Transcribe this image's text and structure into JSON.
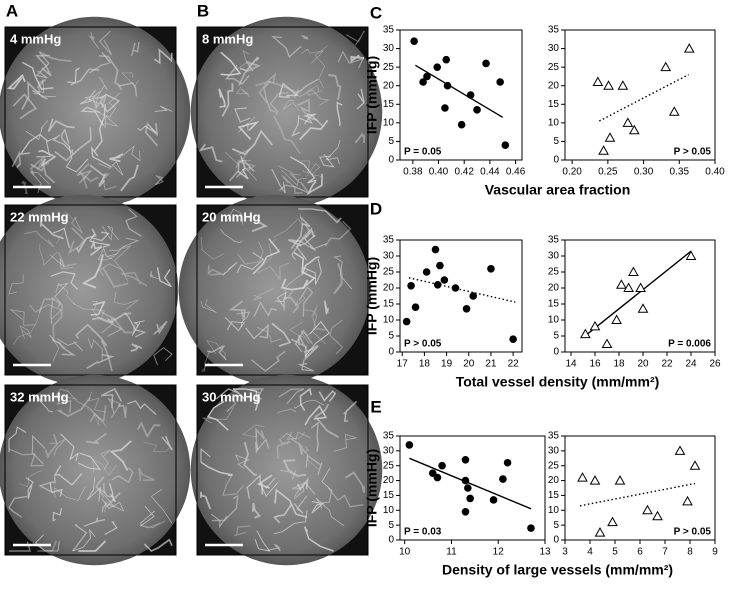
{
  "panel_labels": [
    "A",
    "B",
    "C",
    "D",
    "E"
  ],
  "images": [
    {
      "label": "4 mmHg"
    },
    {
      "label": "22 mmHg"
    },
    {
      "label": "32 mmHg"
    },
    {
      "label": "8 mmHg"
    },
    {
      "label": "20 mmHg"
    },
    {
      "label": "30 mmHg"
    }
  ],
  "chart_data": [
    {
      "type": "scatter",
      "marker": "circle",
      "color": "#000000",
      "ylabel": "IFP (mmHg)",
      "xlabel": "Vascular area fraction",
      "x": [
        0.381,
        0.388,
        0.391,
        0.399,
        0.406,
        0.407,
        0.405,
        0.418,
        0.425,
        0.43,
        0.437,
        0.448,
        0.452
      ],
      "values": [
        32,
        21,
        22.5,
        25,
        27,
        20,
        14,
        9.5,
        17.5,
        13.5,
        26,
        21,
        4
      ],
      "xlim": [
        0.37,
        0.465
      ],
      "ylim": [
        0,
        35
      ],
      "xticks": [
        0.38,
        {
          "value": 0.4,
          "label": "0.40"
        },
        0.42,
        0.44,
        0.46
      ],
      "yticks": [
        0,
        5,
        10,
        15,
        20,
        25,
        30,
        35
      ],
      "trend": {
        "x": [
          0.382,
          0.45
        ],
        "y": [
          25.5,
          11.5
        ],
        "style": "solid"
      },
      "annotation": "P = 0.05"
    },
    {
      "type": "scatter",
      "marker": "triangle",
      "color": "#000000",
      "x": [
        0.236,
        0.251,
        0.271,
        0.253,
        0.244,
        0.278,
        0.287,
        0.331,
        0.343,
        0.364
      ],
      "values": [
        21,
        20,
        20,
        6,
        2.5,
        10,
        8,
        25,
        13,
        30
      ],
      "xlim": [
        0.19,
        0.4
      ],
      "ylim": [
        0,
        35
      ],
      "xticks": [
        {
          "value": 0.2,
          "label": "0.20"
        },
        0.25,
        {
          "value": 0.3,
          "label": "0.30"
        },
        0.35,
        {
          "value": 0.4,
          "label": "0.40"
        }
      ],
      "yticks": [
        0,
        5,
        10,
        15,
        20,
        25,
        30,
        35
      ],
      "trend": {
        "x": [
          0.238,
          0.363
        ],
        "y": [
          10.5,
          23
        ],
        "style": "dotted"
      },
      "annotation": "P > 0.05"
    },
    {
      "type": "scatter",
      "marker": "circle",
      "color": "#000000",
      "ylabel": "IFP (mmHg)",
      "xlabel": "Total vessel density (mm/mm²)",
      "x": [
        17.4,
        17.6,
        17.2,
        18.1,
        18.5,
        18.7,
        18.6,
        18.9,
        19.4,
        19.9,
        20.2,
        21.0,
        22.0
      ],
      "values": [
        20.7,
        14,
        9.5,
        25,
        32,
        27,
        21,
        22.5,
        20,
        13.5,
        17.5,
        26,
        4
      ],
      "xlim": [
        16.9,
        22.4
      ],
      "ylim": [
        0,
        35
      ],
      "xticks": [
        17,
        18,
        19,
        20,
        21,
        22
      ],
      "yticks": [
        0,
        5,
        10,
        15,
        20,
        25,
        30,
        35
      ],
      "trend": {
        "x": [
          17.3,
          22.1
        ],
        "y": [
          23.2,
          15.6
        ],
        "style": "dotted"
      },
      "annotation": "P > 0.05"
    },
    {
      "type": "scatter",
      "marker": "triangle",
      "color": "#000000",
      "x": [
        15.2,
        16,
        17,
        17.8,
        18.2,
        18.8,
        19.2,
        19.8,
        20,
        24
      ],
      "values": [
        5.6,
        8,
        2.5,
        10,
        21,
        20,
        25,
        20,
        13.5,
        30
      ],
      "xlim": [
        13.5,
        26
      ],
      "ylim": [
        0,
        35
      ],
      "xticks": [
        14,
        16,
        18,
        20,
        22,
        24,
        26
      ],
      "yticks": [
        0,
        5,
        10,
        15,
        20,
        25,
        30,
        35
      ],
      "trend": {
        "x": [
          15,
          24
        ],
        "y": [
          4.5,
          31.5
        ],
        "style": "solid"
      },
      "annotation": "P = 0.006"
    },
    {
      "type": "scatter",
      "marker": "circle",
      "color": "#000000",
      "ylabel": "IFP (mmHg)",
      "xlabel": "Density of large vessels (mm/mm²)",
      "x": [
        10.1,
        10.6,
        10.7,
        10.8,
        11.3,
        11.3,
        11.35,
        11.4,
        11.3,
        11.9,
        12.1,
        12.2,
        12.7
      ],
      "values": [
        32,
        22.5,
        21,
        25,
        27,
        20,
        17.5,
        14,
        9.5,
        13.5,
        20.5,
        26,
        4
      ],
      "xlim": [
        9.9,
        13
      ],
      "ylim": [
        0,
        35
      ],
      "xticks": [
        10,
        11,
        12,
        13
      ],
      "yticks": [
        0,
        5,
        10,
        15,
        20,
        25,
        30,
        35
      ],
      "trend": {
        "x": [
          10.1,
          12.7
        ],
        "y": [
          27.5,
          10.5
        ],
        "style": "solid"
      },
      "annotation": "P = 0.03"
    },
    {
      "type": "scatter",
      "marker": "triangle",
      "color": "#000000",
      "x": [
        3.7,
        4.2,
        4.4,
        4.9,
        5.2,
        6.3,
        6.7,
        7.6,
        7.9,
        8.2
      ],
      "values": [
        21,
        20,
        2.5,
        6,
        20,
        10,
        8,
        30,
        13,
        25
      ],
      "xlim": [
        3,
        9
      ],
      "ylim": [
        0,
        35
      ],
      "xticks": [
        3,
        4,
        5,
        6,
        7,
        8,
        9
      ],
      "yticks": [
        0,
        5,
        10,
        15,
        20,
        25,
        30,
        35
      ],
      "trend": {
        "x": [
          3.6,
          8.2
        ],
        "y": [
          11.5,
          19
        ],
        "style": "dotted"
      },
      "annotation": "P > 0.05"
    }
  ]
}
